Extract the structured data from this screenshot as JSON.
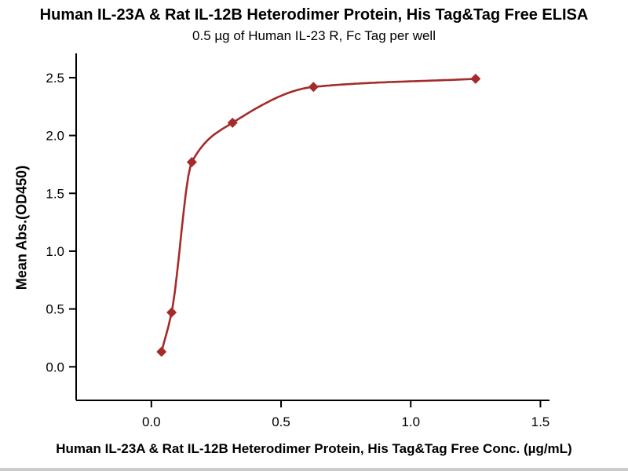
{
  "chart_data": {
    "type": "scatter",
    "title": "Human IL-23A & Rat IL-12B Heterodimer Protein, His Tag&Tag Free ELISA",
    "subtitle": "0.5 µg of Human IL-23 R, Fc Tag per well",
    "xlabel": "Human IL-23A & Rat IL-12B Heterodimer Protein, His Tag&Tag Free Conc. (µg/mL)",
    "ylabel": "Mean Abs.(OD450)",
    "x": [
      0.039,
      0.078,
      0.156,
      0.313,
      0.625,
      1.25
    ],
    "y": [
      0.13,
      0.47,
      1.77,
      2.11,
      2.42,
      2.49
    ],
    "fit": "sigmoidal dose-response curve through data points",
    "xticks": [
      0.0,
      0.5,
      1.0,
      1.5
    ],
    "yticks": [
      0.0,
      0.5,
      1.0,
      1.5,
      2.0,
      2.5
    ],
    "xlim": [
      -0.29,
      1.535
    ],
    "ylim": [
      -0.29,
      2.71
    ],
    "marker": "diamond",
    "line_color": "#A52A2A",
    "marker_color": "#A52A2A",
    "axis_color": "#000000",
    "grid": false,
    "legend": false
  }
}
